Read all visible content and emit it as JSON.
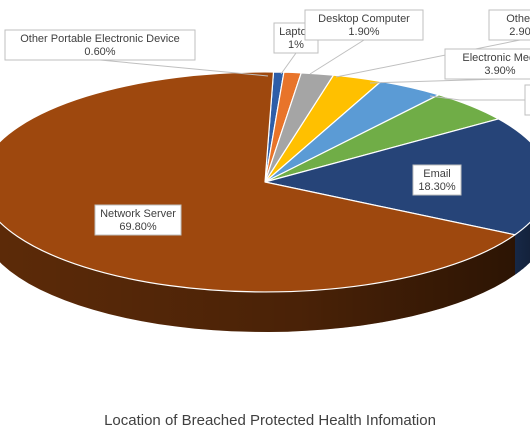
{
  "chart_data": {
    "type": "pie",
    "title": "Location of Breached Protected Health Infomation",
    "slices": [
      {
        "label": "Other Portable Electronic Device",
        "value_text": "0.60%",
        "value": 0.6,
        "color": "#2e5ea8"
      },
      {
        "label": "Laptop",
        "value_text": "1%",
        "value": 1.0,
        "color": "#e8742a"
      },
      {
        "label": "Desktop Computer",
        "value_text": "1.90%",
        "value": 1.9,
        "color": "#a5a5a5"
      },
      {
        "label": "Other",
        "value_text": "2.90",
        "value": 2.9,
        "color": "#ffc000"
      },
      {
        "label": "Electronic Medi",
        "value_text": "3.90%",
        "value": 3.9,
        "color": "#5b9bd5"
      },
      {
        "label": "",
        "value_text": "",
        "value": 5.0,
        "color": "#70ad47"
      },
      {
        "label": "Email",
        "value_text": "18.30%",
        "value": 18.3,
        "color": "#264478"
      },
      {
        "label": "Network Server",
        "value_text": "69.80%",
        "value": 69.8,
        "color": "#9e480e"
      }
    ],
    "legend": "none"
  }
}
